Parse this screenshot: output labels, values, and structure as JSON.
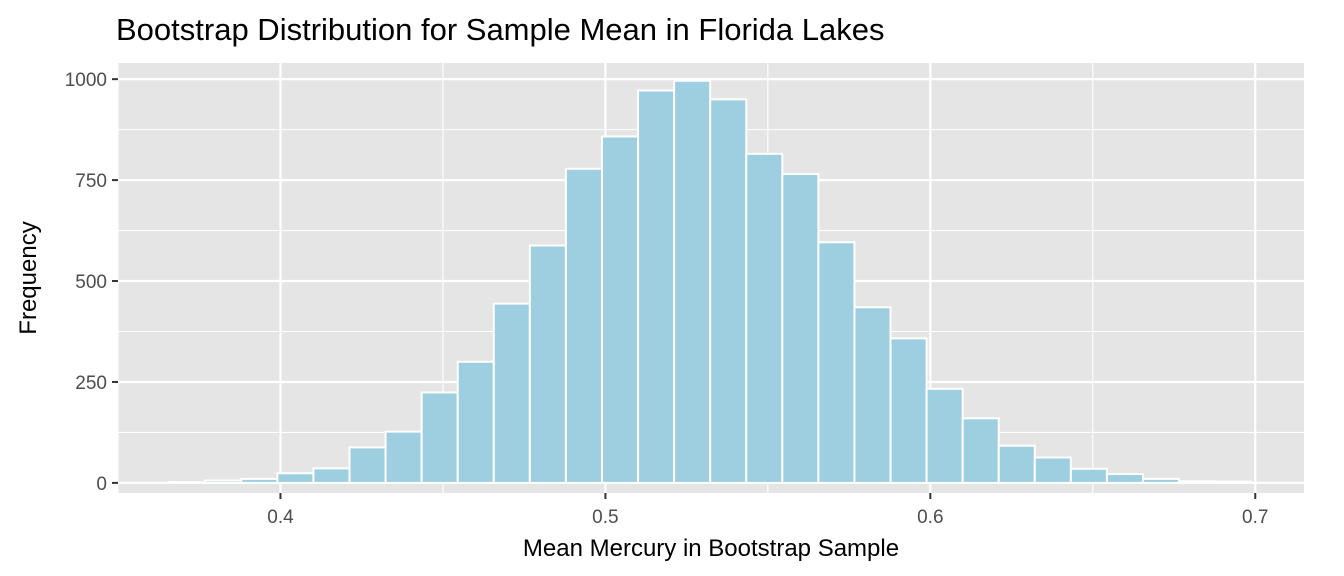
{
  "chart_data": {
    "type": "bar",
    "title": "Bootstrap Distribution for Sample Mean in Florida Lakes",
    "xlabel": "Mean Mercury in Bootstrap Sample",
    "ylabel": "Frequency",
    "xlim": [
      0.35,
      0.715
    ],
    "ylim": [
      -25,
      1040
    ],
    "x_ticks": [
      0.4,
      0.5,
      0.6,
      0.7
    ],
    "x_tick_labels": [
      "0.4",
      "0.5",
      "0.6",
      "0.7"
    ],
    "y_ticks": [
      0,
      250,
      500,
      750,
      1000
    ],
    "y_tick_labels": [
      "0",
      "250",
      "500",
      "750",
      "1000"
    ],
    "bin_width": 0.0111,
    "bin_centers": [
      0.3713,
      0.3824,
      0.3935,
      0.4046,
      0.4157,
      0.4268,
      0.4379,
      0.449,
      0.4601,
      0.4712,
      0.4823,
      0.4934,
      0.5045,
      0.5156,
      0.5267,
      0.5378,
      0.5489,
      0.56,
      0.5711,
      0.5822,
      0.5933,
      0.6044,
      0.6155,
      0.6266,
      0.6377,
      0.6488,
      0.6599,
      0.671,
      0.6821,
      0.6932
    ],
    "values": [
      2,
      6,
      10,
      24,
      36,
      88,
      127,
      224,
      300,
      444,
      588,
      778,
      858,
      972,
      996,
      950,
      815,
      765,
      596,
      435,
      358,
      233,
      160,
      92,
      63,
      35,
      22,
      10,
      4,
      3
    ],
    "bar_fill": "#9ecfe0",
    "bar_outline": "#ffffff",
    "panel_background": "#e5e5e5",
    "grid_color": "#ffffff",
    "grid": true
  }
}
